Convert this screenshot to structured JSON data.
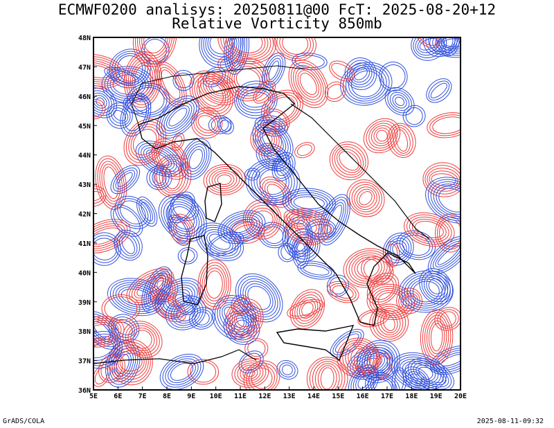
{
  "title": {
    "line1": "ECMWF0200 analisys: 20250811@00 FcT: 2025-08-20+12",
    "line2": "Relative Vorticity 850mb"
  },
  "axes": {
    "lon_labels": [
      "5E",
      "6E",
      "7E",
      "8E",
      "9E",
      "10E",
      "11E",
      "12E",
      "13E",
      "14E",
      "15E",
      "16E",
      "17E",
      "18E",
      "19E",
      "20E"
    ],
    "lat_labels": [
      "48N",
      "47N",
      "46N",
      "45N",
      "44N",
      "43N",
      "42N",
      "41N",
      "40N",
      "39N",
      "38N",
      "37N",
      "36N"
    ]
  },
  "colors": {
    "positive": "#ee3b3b",
    "negative": "#2f4fdc",
    "coast": "#000000"
  },
  "footer": {
    "left": "GrADS/COLA",
    "right": "2025-08-11-09:32"
  }
}
